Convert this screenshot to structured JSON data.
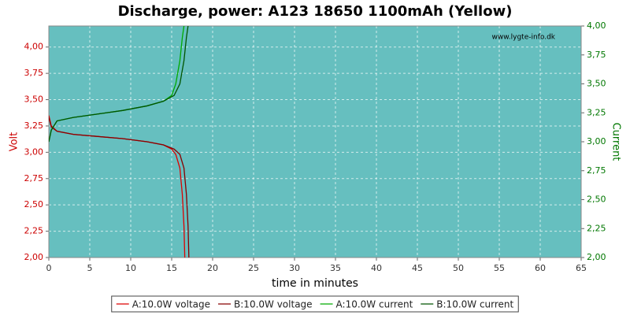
{
  "chart_data": {
    "type": "line",
    "title": "Discharge, power: A123 18650 1100mAh (Yellow)",
    "watermark": "www.lygte-info.dk",
    "x_label": "time in minutes",
    "y_label": "Volt",
    "y2_label": "Current",
    "y_color": "#cc0000",
    "y2_color": "#007700",
    "plot_background": "#66bfbf",
    "grid": true,
    "xlim": [
      0,
      65
    ],
    "xticks": [
      0,
      5,
      10,
      15,
      20,
      25,
      30,
      35,
      40,
      45,
      50,
      55,
      60,
      65
    ],
    "ylim": [
      2,
      4.2
    ],
    "yticks": [
      {
        "value": 2,
        "label": "2,00"
      },
      {
        "value": 2.25,
        "label": "2,25"
      },
      {
        "value": 2.5,
        "label": "2,50"
      },
      {
        "value": 2.75,
        "label": "2,75"
      },
      {
        "value": 3,
        "label": "3,00"
      },
      {
        "value": 3.25,
        "label": "3,25"
      },
      {
        "value": 3.5,
        "label": "3,50"
      },
      {
        "value": 3.75,
        "label": "3,75"
      },
      {
        "value": 4,
        "label": "4,00"
      }
    ],
    "y2lim": [
      2,
      4
    ],
    "y2ticks": [
      {
        "value": 2,
        "label": "2,00"
      },
      {
        "value": 2.25,
        "label": "2,25"
      },
      {
        "value": 2.5,
        "label": "2,50"
      },
      {
        "value": 2.75,
        "label": "2,75"
      },
      {
        "value": 3,
        "label": "3,00"
      },
      {
        "value": 3.25,
        "label": "3,25"
      },
      {
        "value": 3.5,
        "label": "3,50"
      },
      {
        "value": 3.75,
        "label": "3,75"
      },
      {
        "value": 4,
        "label": "4,00"
      }
    ],
    "series": [
      {
        "name": "A:10.0W voltage",
        "color": "#dd0000",
        "axis": "y",
        "x": [
          0,
          0.3,
          1,
          3,
          6,
          9,
          12,
          14,
          15,
          15.5,
          16,
          16.3,
          16.5,
          16.6
        ],
        "values": [
          3.35,
          3.25,
          3.2,
          3.17,
          3.15,
          3.13,
          3.1,
          3.07,
          3.03,
          2.98,
          2.85,
          2.6,
          2.3,
          2.0
        ]
      },
      {
        "name": "B:10.0W voltage",
        "color": "#880000",
        "axis": "y",
        "x": [
          0,
          0.3,
          1,
          3,
          6,
          9,
          12,
          14,
          15.3,
          16,
          16.5,
          16.8,
          17,
          17.1
        ],
        "values": [
          3.33,
          3.24,
          3.2,
          3.17,
          3.15,
          3.13,
          3.1,
          3.07,
          3.03,
          2.98,
          2.85,
          2.6,
          2.3,
          2.0
        ]
      },
      {
        "name": "A:10.0W current",
        "color": "#00aa00",
        "axis": "y2",
        "x": [
          0,
          0.3,
          1,
          3,
          6,
          9,
          12,
          14,
          15,
          15.5,
          16,
          16.3,
          16.5
        ],
        "values": [
          3.0,
          3.1,
          3.18,
          3.21,
          3.24,
          3.27,
          3.31,
          3.35,
          3.4,
          3.5,
          3.7,
          3.9,
          4.0
        ]
      },
      {
        "name": "B:10.0W current",
        "color": "#005500",
        "axis": "y2",
        "x": [
          0,
          0.3,
          1,
          3,
          6,
          9,
          12,
          14,
          15.3,
          16,
          16.5,
          16.8,
          17
        ],
        "values": [
          3.0,
          3.1,
          3.18,
          3.21,
          3.24,
          3.27,
          3.31,
          3.35,
          3.4,
          3.5,
          3.7,
          3.9,
          4.0
        ]
      }
    ]
  }
}
